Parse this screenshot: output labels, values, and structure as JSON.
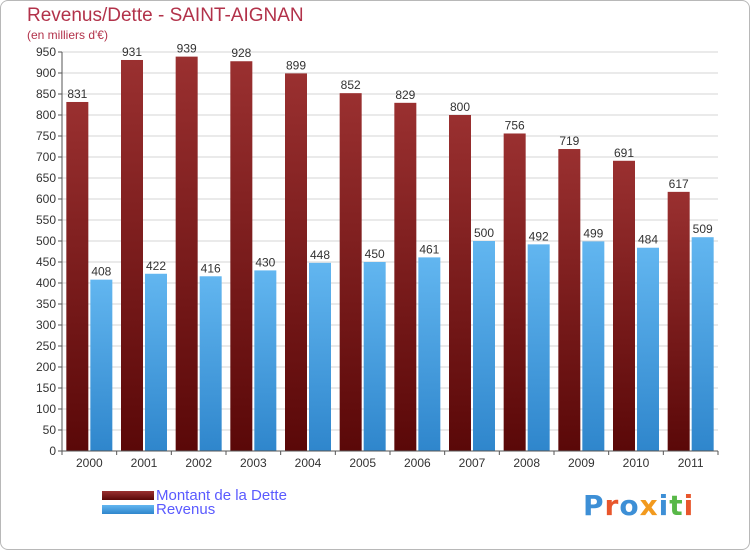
{
  "title": "Revenus/Dette - SAINT-AIGNAN",
  "subtitle": "(en milliers d'€)",
  "legend": [
    {
      "label": "Montant de la Dette",
      "color": "#7a1418"
    },
    {
      "label": "Revenus",
      "color": "#4ea8e8"
    }
  ],
  "logo": {
    "text": "Proxiti",
    "colors": [
      "#3d8fd6",
      "#e8562c",
      "#3d8fd6",
      "#f29a1e",
      "#3d8fd6",
      "#58b848",
      "#e8562c"
    ]
  },
  "chart_data": {
    "type": "bar",
    "title": "Revenus/Dette - SAINT-AIGNAN",
    "subtitle": "(en milliers d'€)",
    "xlabel": "",
    "ylabel": "",
    "categories": [
      "2000",
      "2001",
      "2002",
      "2003",
      "2004",
      "2005",
      "2006",
      "2007",
      "2008",
      "2009",
      "2010",
      "2011"
    ],
    "series": [
      {
        "name": "Montant de la Dette",
        "color": "#7a1418",
        "values": [
          831,
          931,
          939,
          928,
          899,
          852,
          829,
          800,
          756,
          719,
          691,
          617
        ]
      },
      {
        "name": "Revenus",
        "color": "#4ea8e8",
        "values": [
          408,
          422,
          416,
          430,
          448,
          450,
          461,
          500,
          492,
          499,
          484,
          509
        ]
      }
    ],
    "ylim": [
      0,
      950
    ],
    "yticks": [
      0,
      50,
      100,
      150,
      200,
      250,
      300,
      350,
      400,
      450,
      500,
      550,
      600,
      650,
      700,
      750,
      800,
      850,
      900,
      950
    ],
    "grid": true,
    "legend_position": "bottom-left"
  }
}
